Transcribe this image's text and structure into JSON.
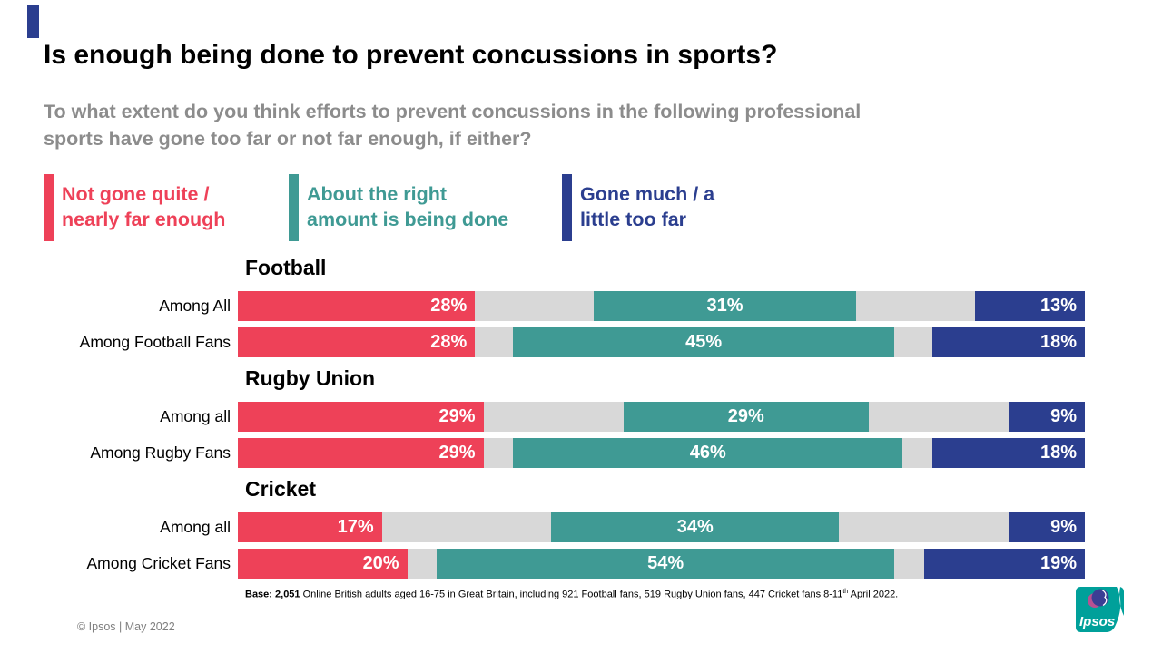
{
  "brand": {
    "accent_bar_color": "#2B3E8F"
  },
  "title": "Is enough being done to prevent concussions in sports?",
  "subtitle_lines": [
    "To what extent do you think efforts to prevent concussions in the following professional",
    "sports have gone too far or not far enough, if either?"
  ],
  "legend": [
    {
      "line1": "Not gone quite /",
      "line2": "nearly far enough",
      "color": "#EE4158"
    },
    {
      "line1": "About the right",
      "line2": "amount is being done",
      "color": "#3F9A94"
    },
    {
      "line1": "Gone much / a",
      "line2": "little too far",
      "color": "#2B3E8F"
    }
  ],
  "chart_data": {
    "type": "bar",
    "orientation": "horizontal",
    "value_suffix": "%",
    "track_color": "#D8D8D8",
    "series_names": [
      "Not gone quite / nearly far enough",
      "About the right amount is being done",
      "Gone much / a little too far"
    ],
    "series_colors": [
      "#EE4158",
      "#3F9A94",
      "#2B3E8F"
    ],
    "layout_note": "red segment left-aligned, navy segment right-aligned, teal segment centered in remaining space, gray track behind",
    "sections": [
      {
        "sport": "Football",
        "rows": [
          {
            "label": "Among All",
            "values": [
              28,
              31,
              13
            ]
          },
          {
            "label": "Among Football Fans",
            "values": [
              28,
              45,
              18
            ]
          }
        ]
      },
      {
        "sport": "Rugby Union",
        "rows": [
          {
            "label": "Among all",
            "values": [
              29,
              29,
              9
            ]
          },
          {
            "label": "Among Rugby Fans",
            "values": [
              29,
              46,
              18
            ]
          }
        ]
      },
      {
        "sport": "Cricket",
        "rows": [
          {
            "label": "Among all",
            "values": [
              17,
              34,
              9
            ]
          },
          {
            "label": "Among Cricket Fans",
            "values": [
              20,
              54,
              19
            ]
          }
        ]
      }
    ]
  },
  "base_note": {
    "bold": "Base: 2,051",
    "text": " Online British adults aged 16-75 in Great Britain, including 921 Football fans, 519 Rugby Union fans, 447 Cricket fans 8-11",
    "superscript": "th",
    "text_after": " April 2022."
  },
  "footer": {
    "copyright": "© Ipsos | May 2022"
  },
  "logo": {
    "text": "Ipsos",
    "teal": "#00A09A",
    "navy": "#3B3E94",
    "pink": "#B85092"
  }
}
